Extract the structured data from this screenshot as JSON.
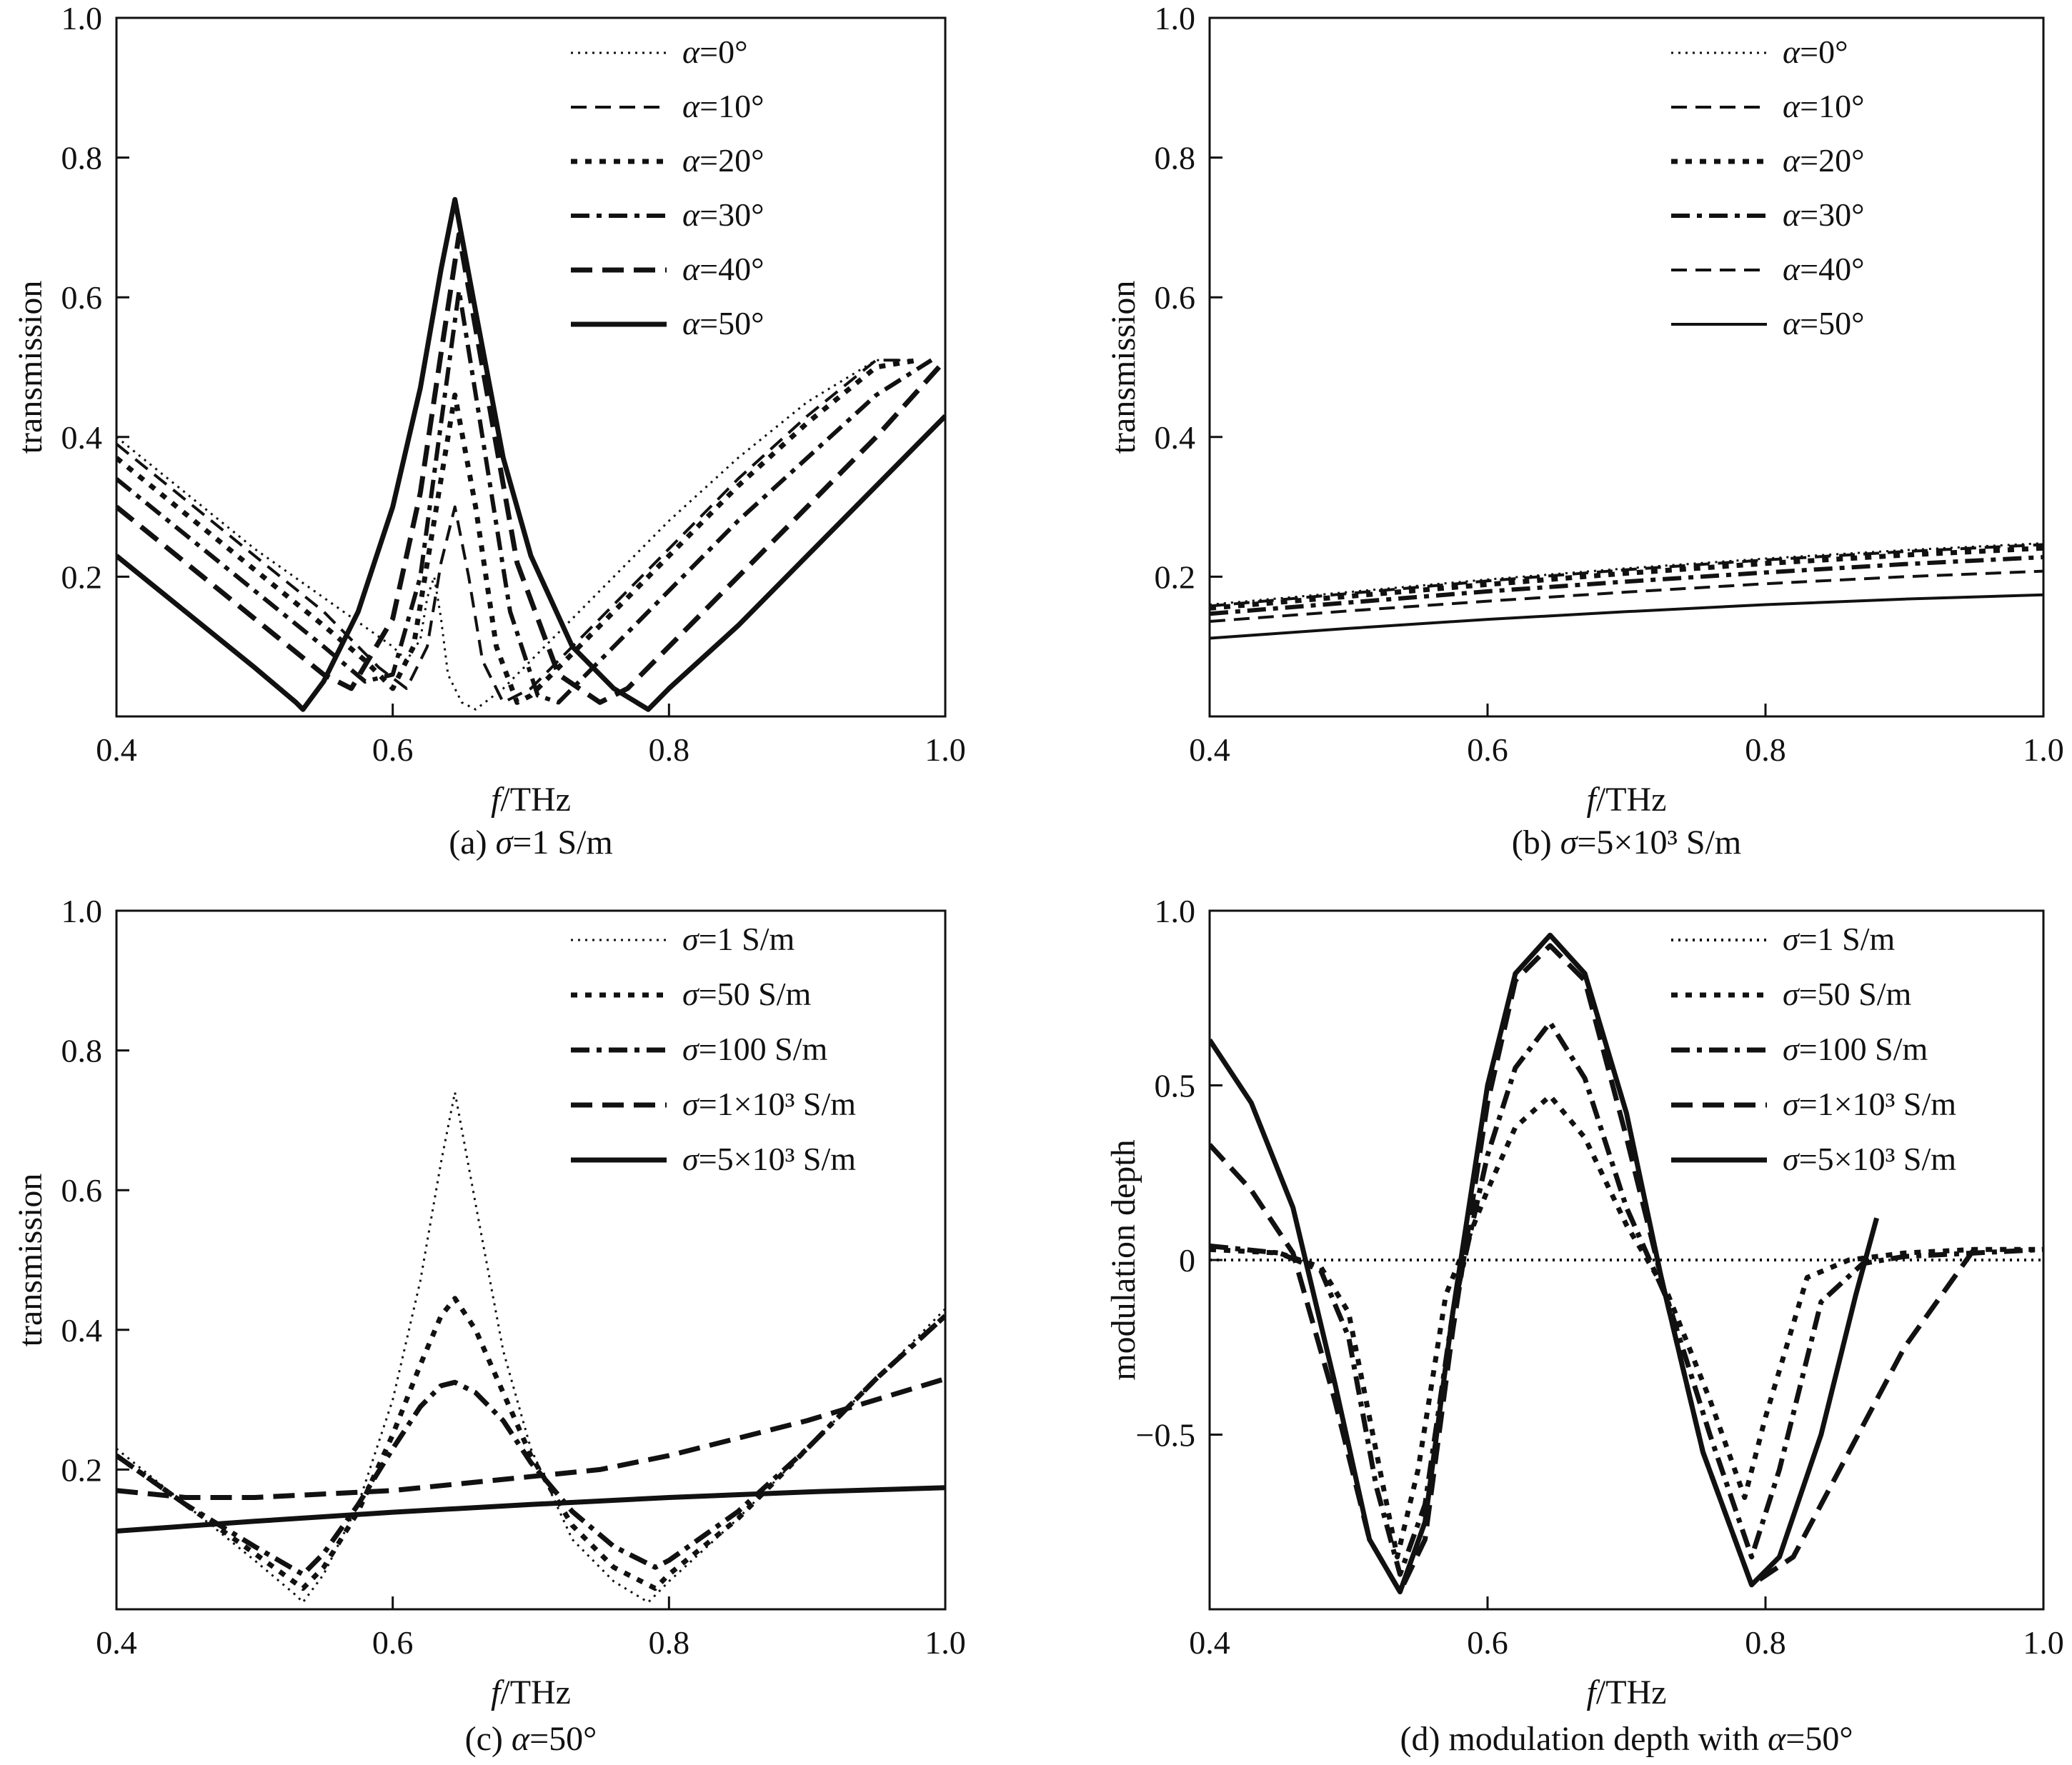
{
  "chart_data": [
    {
      "id": "a",
      "type": "line",
      "caption_prefix": "(a) ",
      "caption_var": "σ",
      "caption_rest": "=1 S/m",
      "xlabel_var": "f",
      "xlabel_unit": "/THz",
      "ylabel": "transmission",
      "xlim": [
        0.4,
        1.0
      ],
      "ylim": [
        0.0,
        1.0
      ],
      "xticks": [
        "0.4",
        "0.6",
        "0.8",
        "1.0"
      ],
      "yticks": [
        "0.2",
        "0.4",
        "0.6",
        "0.8",
        "1.0"
      ],
      "legend_position": "top-right",
      "series": [
        {
          "var": "α",
          "name": "=0°",
          "style": "dot",
          "width": 3,
          "x": [
            0.4,
            0.45,
            0.5,
            0.55,
            0.6,
            0.61,
            0.62,
            0.625,
            0.63,
            0.635,
            0.64,
            0.65,
            0.66,
            0.68,
            0.7,
            0.75,
            0.8,
            0.85,
            0.9,
            0.95,
            0.97
          ],
          "y": [
            0.4,
            0.32,
            0.24,
            0.17,
            0.1,
            0.08,
            0.11,
            0.17,
            0.2,
            0.14,
            0.06,
            0.02,
            0.01,
            0.04,
            0.08,
            0.18,
            0.28,
            0.37,
            0.45,
            0.51,
            0.51
          ]
        },
        {
          "var": "α",
          "name": "=10°",
          "style": "dash",
          "width": 4,
          "x": [
            0.4,
            0.45,
            0.5,
            0.55,
            0.59,
            0.61,
            0.625,
            0.635,
            0.645,
            0.655,
            0.665,
            0.68,
            0.7,
            0.75,
            0.8,
            0.85,
            0.9,
            0.95,
            0.975
          ],
          "y": [
            0.39,
            0.31,
            0.23,
            0.15,
            0.07,
            0.04,
            0.1,
            0.22,
            0.3,
            0.2,
            0.08,
            0.02,
            0.04,
            0.14,
            0.24,
            0.34,
            0.43,
            0.51,
            0.51
          ]
        },
        {
          "var": "α",
          "name": "=20°",
          "style": "dot-heavy",
          "width": 7,
          "x": [
            0.4,
            0.45,
            0.5,
            0.55,
            0.58,
            0.6,
            0.615,
            0.63,
            0.645,
            0.66,
            0.675,
            0.69,
            0.7,
            0.75,
            0.8,
            0.85,
            0.9,
            0.95,
            0.98
          ],
          "y": [
            0.37,
            0.29,
            0.21,
            0.13,
            0.08,
            0.04,
            0.1,
            0.28,
            0.46,
            0.3,
            0.1,
            0.02,
            0.03,
            0.13,
            0.23,
            0.33,
            0.42,
            0.5,
            0.51
          ]
        },
        {
          "var": "α",
          "name": "=30°",
          "style": "dashdot",
          "width": 6,
          "x": [
            0.4,
            0.45,
            0.5,
            0.55,
            0.58,
            0.6,
            0.62,
            0.635,
            0.648,
            0.665,
            0.685,
            0.705,
            0.72,
            0.75,
            0.8,
            0.85,
            0.9,
            0.95,
            0.99
          ],
          "y": [
            0.34,
            0.26,
            0.18,
            0.1,
            0.05,
            0.06,
            0.2,
            0.42,
            0.61,
            0.4,
            0.15,
            0.03,
            0.02,
            0.08,
            0.18,
            0.28,
            0.37,
            0.46,
            0.51
          ]
        },
        {
          "var": "α",
          "name": "=40°",
          "style": "dash-heavy",
          "width": 7,
          "x": [
            0.4,
            0.45,
            0.5,
            0.55,
            0.57,
            0.6,
            0.62,
            0.635,
            0.648,
            0.665,
            0.69,
            0.72,
            0.75,
            0.77,
            0.8,
            0.85,
            0.9,
            0.95,
            1.0
          ],
          "y": [
            0.3,
            0.22,
            0.14,
            0.06,
            0.04,
            0.14,
            0.32,
            0.52,
            0.69,
            0.5,
            0.22,
            0.06,
            0.02,
            0.04,
            0.1,
            0.2,
            0.3,
            0.4,
            0.51
          ]
        },
        {
          "var": "α",
          "name": "=50°",
          "style": "solid",
          "width": 7,
          "x": [
            0.4,
            0.45,
            0.5,
            0.53,
            0.535,
            0.55,
            0.575,
            0.6,
            0.62,
            0.635,
            0.645,
            0.66,
            0.68,
            0.7,
            0.73,
            0.76,
            0.785,
            0.79,
            0.8,
            0.85,
            0.9,
            0.95,
            1.0
          ],
          "y": [
            0.23,
            0.15,
            0.07,
            0.02,
            0.01,
            0.05,
            0.15,
            0.3,
            0.47,
            0.64,
            0.74,
            0.58,
            0.37,
            0.23,
            0.1,
            0.04,
            0.01,
            0.02,
            0.04,
            0.13,
            0.23,
            0.33,
            0.43
          ]
        }
      ]
    },
    {
      "id": "b",
      "type": "line",
      "caption_prefix": "(b) ",
      "caption_var": "σ",
      "caption_rest": "=5×10³ S/m",
      "xlabel_var": "f",
      "xlabel_unit": "/THz",
      "ylabel": "transmission",
      "xlim": [
        0.4,
        1.0
      ],
      "ylim": [
        0.0,
        1.0
      ],
      "xticks": [
        "0.4",
        "0.6",
        "0.8",
        "1.0"
      ],
      "yticks": [
        "0.2",
        "0.4",
        "0.6",
        "0.8",
        "1.0"
      ],
      "legend_position": "top-right",
      "series": [
        {
          "var": "α",
          "name": "=0°",
          "style": "dot",
          "width": 3,
          "x": [
            0.4,
            0.5,
            0.6,
            0.7,
            0.8,
            0.9,
            1.0
          ],
          "y": [
            0.16,
            0.178,
            0.196,
            0.212,
            0.226,
            0.238,
            0.248
          ]
        },
        {
          "var": "α",
          "name": "=10°",
          "style": "dash",
          "width": 4,
          "x": [
            0.4,
            0.5,
            0.6,
            0.7,
            0.8,
            0.9,
            1.0
          ],
          "y": [
            0.158,
            0.176,
            0.194,
            0.21,
            0.224,
            0.236,
            0.246
          ]
        },
        {
          "var": "α",
          "name": "=20°",
          "style": "dot-heavy",
          "width": 7,
          "x": [
            0.4,
            0.5,
            0.6,
            0.7,
            0.8,
            0.9,
            1.0
          ],
          "y": [
            0.155,
            0.172,
            0.189,
            0.205,
            0.219,
            0.231,
            0.241
          ]
        },
        {
          "var": "α",
          "name": "=30°",
          "style": "dashdot",
          "width": 6,
          "x": [
            0.4,
            0.5,
            0.6,
            0.7,
            0.8,
            0.9,
            1.0
          ],
          "y": [
            0.147,
            0.163,
            0.179,
            0.193,
            0.206,
            0.218,
            0.228
          ]
        },
        {
          "var": "α",
          "name": "=40°",
          "style": "dash",
          "width": 4,
          "x": [
            0.4,
            0.5,
            0.6,
            0.7,
            0.8,
            0.9,
            1.0
          ],
          "y": [
            0.136,
            0.151,
            0.165,
            0.178,
            0.19,
            0.2,
            0.208
          ]
        },
        {
          "var": "α",
          "name": "=50°",
          "style": "solid",
          "width": 4,
          "x": [
            0.4,
            0.5,
            0.6,
            0.7,
            0.8,
            0.9,
            1.0
          ],
          "y": [
            0.112,
            0.126,
            0.139,
            0.15,
            0.16,
            0.168,
            0.174
          ]
        }
      ]
    },
    {
      "id": "c",
      "type": "line",
      "caption_prefix": "(c) ",
      "caption_var": "α",
      "caption_rest": "=50°",
      "xlabel_var": "f",
      "xlabel_unit": "/THz",
      "ylabel": "transmission",
      "xlim": [
        0.4,
        1.0
      ],
      "ylim": [
        0.0,
        1.0
      ],
      "xticks": [
        "0.4",
        "0.6",
        "0.8",
        "1.0"
      ],
      "yticks": [
        "0.2",
        "0.4",
        "0.6",
        "0.8",
        "1.0"
      ],
      "legend_position": "top-right",
      "series": [
        {
          "var": "σ",
          "name": "=1 S/m",
          "style": "dot",
          "width": 3,
          "x": [
            0.4,
            0.45,
            0.5,
            0.53,
            0.535,
            0.55,
            0.575,
            0.6,
            0.62,
            0.635,
            0.645,
            0.66,
            0.68,
            0.7,
            0.73,
            0.76,
            0.785,
            0.79,
            0.8,
            0.85,
            0.9,
            0.95,
            1.0
          ],
          "y": [
            0.23,
            0.15,
            0.07,
            0.02,
            0.01,
            0.05,
            0.15,
            0.3,
            0.47,
            0.64,
            0.74,
            0.58,
            0.37,
            0.23,
            0.1,
            0.04,
            0.01,
            0.02,
            0.04,
            0.13,
            0.23,
            0.33,
            0.43
          ]
        },
        {
          "var": "σ",
          "name": "=50 S/m",
          "style": "dot-heavy",
          "width": 7,
          "x": [
            0.4,
            0.45,
            0.5,
            0.535,
            0.55,
            0.575,
            0.6,
            0.62,
            0.635,
            0.645,
            0.66,
            0.68,
            0.7,
            0.73,
            0.76,
            0.79,
            0.8,
            0.85,
            0.9,
            0.95,
            1.0
          ],
          "y": [
            0.22,
            0.15,
            0.08,
            0.03,
            0.06,
            0.14,
            0.25,
            0.35,
            0.42,
            0.445,
            0.4,
            0.31,
            0.22,
            0.12,
            0.06,
            0.03,
            0.05,
            0.13,
            0.23,
            0.33,
            0.42
          ]
        },
        {
          "var": "σ",
          "name": "=100 S/m",
          "style": "dashdot",
          "width": 7,
          "x": [
            0.4,
            0.45,
            0.5,
            0.535,
            0.55,
            0.575,
            0.6,
            0.62,
            0.635,
            0.645,
            0.66,
            0.68,
            0.7,
            0.73,
            0.76,
            0.79,
            0.8,
            0.85,
            0.9,
            0.95,
            1.0
          ],
          "y": [
            0.22,
            0.15,
            0.09,
            0.05,
            0.08,
            0.15,
            0.23,
            0.29,
            0.32,
            0.325,
            0.31,
            0.27,
            0.21,
            0.14,
            0.09,
            0.06,
            0.07,
            0.14,
            0.23,
            0.33,
            0.42
          ]
        },
        {
          "var": "σ",
          "name": "=1×10³ S/m",
          "style": "dash-heavy",
          "width": 7,
          "x": [
            0.4,
            0.45,
            0.5,
            0.55,
            0.6,
            0.65,
            0.7,
            0.75,
            0.8,
            0.85,
            0.9,
            0.95,
            1.0
          ],
          "y": [
            0.17,
            0.16,
            0.16,
            0.165,
            0.17,
            0.18,
            0.19,
            0.2,
            0.22,
            0.245,
            0.27,
            0.3,
            0.33
          ]
        },
        {
          "var": "σ",
          "name": "=5×10³ S/m",
          "style": "solid",
          "width": 7,
          "x": [
            0.4,
            0.5,
            0.6,
            0.7,
            0.8,
            0.9,
            1.0
          ],
          "y": [
            0.112,
            0.126,
            0.139,
            0.15,
            0.16,
            0.168,
            0.174
          ]
        }
      ]
    },
    {
      "id": "d",
      "type": "line",
      "caption_prefix": "(d) modulation depth with ",
      "caption_var": "α",
      "caption_rest": "=50°",
      "xlabel_var": "f",
      "xlabel_unit": "/THz",
      "ylabel": "modulation depth",
      "xlim": [
        0.4,
        1.0
      ],
      "ylim": [
        -1.0,
        1.0
      ],
      "xticks": [
        "0.4",
        "0.6",
        "0.8",
        "1.0"
      ],
      "yticks": [
        "−0.5",
        "0",
        "0.5",
        "1.0"
      ],
      "ytick_values": [
        -0.5,
        0,
        0.5,
        1.0
      ],
      "legend_position": "top-right",
      "series": [
        {
          "var": "σ",
          "name": "=1 S/m",
          "style": "dot",
          "width": 4,
          "x": [
            0.4,
            1.0
          ],
          "y": [
            0.0,
            0.0
          ]
        },
        {
          "var": "σ",
          "name": "=50 S/m",
          "style": "dot-heavy",
          "width": 7,
          "x": [
            0.4,
            0.45,
            0.48,
            0.5,
            0.52,
            0.535,
            0.55,
            0.57,
            0.6,
            0.62,
            0.645,
            0.67,
            0.7,
            0.73,
            0.76,
            0.785,
            0.8,
            0.83,
            0.86,
            0.9,
            0.95,
            1.0
          ],
          "y": [
            0.03,
            0.02,
            -0.02,
            -0.15,
            -0.55,
            -0.85,
            -0.6,
            -0.1,
            0.2,
            0.38,
            0.47,
            0.35,
            0.1,
            -0.1,
            -0.4,
            -0.68,
            -0.45,
            -0.05,
            0.0,
            0.02,
            0.03,
            0.03
          ]
        },
        {
          "var": "σ",
          "name": "=100 S/m",
          "style": "dashdot",
          "width": 7,
          "x": [
            0.4,
            0.45,
            0.48,
            0.5,
            0.52,
            0.537,
            0.555,
            0.575,
            0.6,
            0.62,
            0.645,
            0.67,
            0.7,
            0.73,
            0.76,
            0.79,
            0.81,
            0.84,
            0.87,
            0.9,
            0.95,
            1.0
          ],
          "y": [
            0.04,
            0.02,
            -0.03,
            -0.22,
            -0.65,
            -0.9,
            -0.7,
            -0.15,
            0.3,
            0.55,
            0.68,
            0.52,
            0.15,
            -0.12,
            -0.5,
            -0.85,
            -0.6,
            -0.12,
            -0.01,
            0.01,
            0.02,
            0.03
          ]
        },
        {
          "var": "σ",
          "name": "=1×10³ S/m",
          "style": "dash-heavy",
          "width": 7,
          "x": [
            0.4,
            0.43,
            0.46,
            0.49,
            0.515,
            0.537,
            0.555,
            0.575,
            0.6,
            0.62,
            0.645,
            0.67,
            0.7,
            0.725,
            0.755,
            0.79,
            0.82,
            0.86,
            0.9,
            0.95
          ],
          "y": [
            0.33,
            0.2,
            0.02,
            -0.4,
            -0.8,
            -0.95,
            -0.8,
            -0.2,
            0.45,
            0.8,
            0.9,
            0.8,
            0.35,
            -0.05,
            -0.55,
            -0.93,
            -0.85,
            -0.55,
            -0.25,
            0.03
          ]
        },
        {
          "var": "σ",
          "name": "=5×10³ S/m",
          "style": "solid",
          "width": 7,
          "x": [
            0.4,
            0.43,
            0.46,
            0.49,
            0.515,
            0.537,
            0.555,
            0.575,
            0.6,
            0.62,
            0.645,
            0.67,
            0.7,
            0.725,
            0.755,
            0.79,
            0.81,
            0.84,
            0.865,
            0.88
          ],
          "y": [
            0.63,
            0.45,
            0.15,
            -0.35,
            -0.8,
            -0.95,
            -0.75,
            -0.15,
            0.5,
            0.82,
            0.93,
            0.82,
            0.42,
            -0.05,
            -0.55,
            -0.93,
            -0.85,
            -0.5,
            -0.1,
            0.12
          ]
        }
      ]
    }
  ]
}
